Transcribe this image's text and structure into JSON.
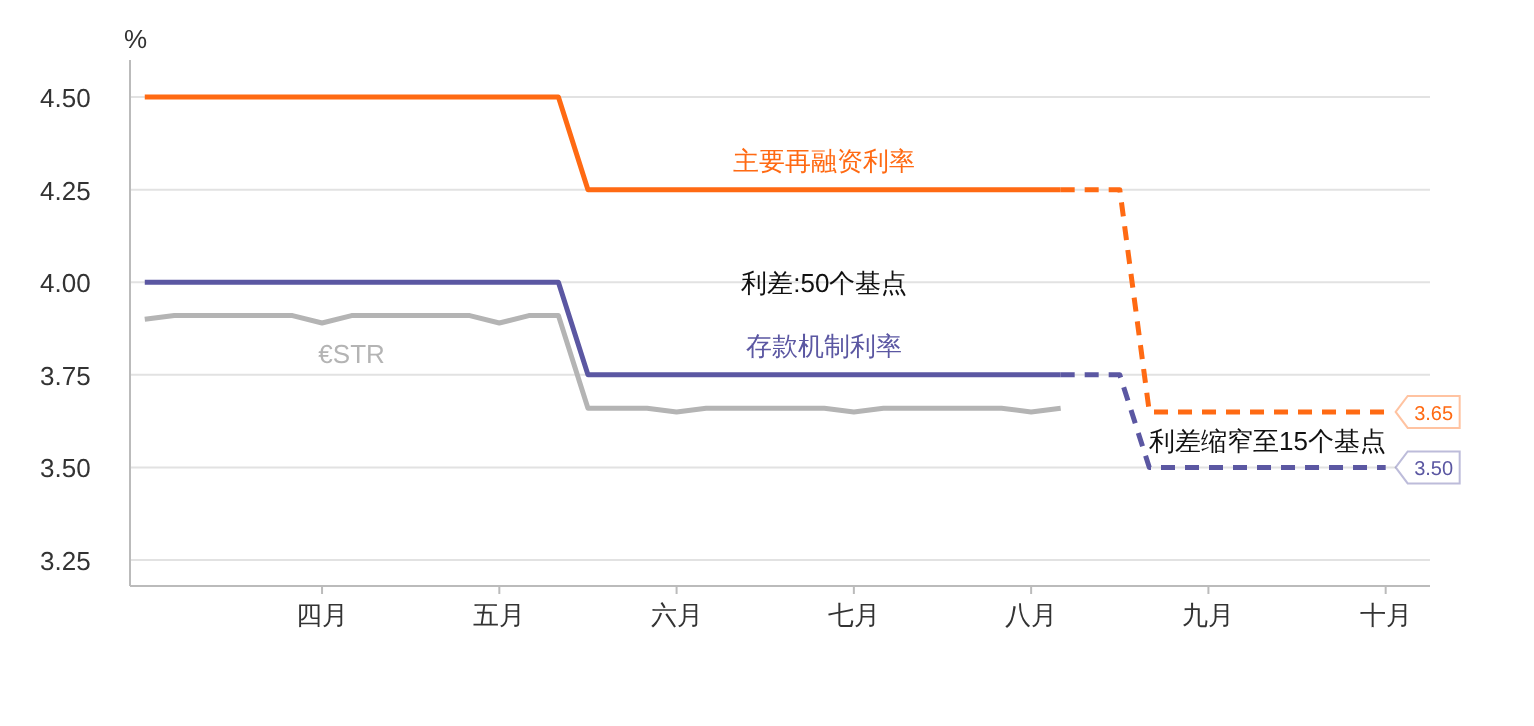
{
  "chart_data": {
    "type": "line",
    "ylabel": "%",
    "ylim": [
      3.18,
      4.6
    ],
    "categories": [
      null,
      null,
      null,
      null,
      null,
      null,
      "四月",
      null,
      null,
      null,
      null,
      null,
      "五月",
      null,
      null,
      null,
      null,
      null,
      "六月",
      null,
      null,
      null,
      null,
      null,
      "七月",
      null,
      null,
      null,
      null,
      null,
      "八月",
      null,
      null,
      null,
      null,
      null,
      "九月",
      null,
      null,
      null,
      null,
      null,
      "十月",
      null
    ],
    "yticks": [
      {
        "value": 3.25,
        "label": "3.25"
      },
      {
        "value": 3.5,
        "label": "3.50"
      },
      {
        "value": 3.75,
        "label": "3.75"
      },
      {
        "value": 4,
        "label": "4.00"
      },
      {
        "value": 4.25,
        "label": "4.25"
      },
      {
        "value": 4.5,
        "label": "4.50"
      }
    ],
    "grid": "y",
    "marker": "none",
    "series": [
      {
        "name": "主要再融资利率",
        "color": "#ff6a13",
        "line_style": "solid",
        "values": [
          4.5,
          4.5,
          4.5,
          4.5,
          4.5,
          4.5,
          4.5,
          4.5,
          4.5,
          4.5,
          4.5,
          4.5,
          4.5,
          4.5,
          4.5,
          4.25,
          4.25,
          4.25,
          4.25,
          4.25,
          4.25,
          4.25,
          4.25,
          4.25,
          4.25,
          4.25,
          4.25,
          4.25,
          4.25,
          4.25,
          4.25,
          4.25,
          null,
          null,
          null,
          null,
          null,
          null,
          null,
          null,
          null,
          null,
          null,
          null
        ]
      },
      {
        "color": "#ff6a13",
        "line_style": "dashed",
        "values": [
          null,
          null,
          null,
          null,
          null,
          null,
          null,
          null,
          null,
          null,
          null,
          null,
          null,
          null,
          null,
          null,
          null,
          null,
          null,
          null,
          null,
          null,
          null,
          null,
          null,
          null,
          null,
          null,
          null,
          null,
          null,
          4.25,
          4.25,
          4.25,
          3.65,
          3.65,
          3.65,
          3.65,
          3.65,
          3.65,
          3.65,
          3.65,
          3.65,
          null
        ],
        "value_labels": [
          null,
          null,
          null,
          null,
          null,
          null,
          null,
          null,
          null,
          null,
          null,
          null,
          null,
          null,
          null,
          null,
          null,
          null,
          null,
          null,
          null,
          null,
          null,
          null,
          null,
          null,
          null,
          null,
          null,
          null,
          null,
          null,
          null,
          null,
          null,
          null,
          null,
          null,
          null,
          null,
          null,
          null,
          "3.65",
          null
        ]
      },
      {
        "name": "存款机制利率",
        "color": "#5b57a2",
        "line_style": "solid",
        "values": [
          4.0,
          4.0,
          4.0,
          4.0,
          4.0,
          4.0,
          4.0,
          4.0,
          4.0,
          4.0,
          4.0,
          4.0,
          4.0,
          4.0,
          4.0,
          3.75,
          3.75,
          3.75,
          3.75,
          3.75,
          3.75,
          3.75,
          3.75,
          3.75,
          3.75,
          3.75,
          3.75,
          3.75,
          3.75,
          3.75,
          3.75,
          3.75,
          null,
          null,
          null,
          null,
          null,
          null,
          null,
          null,
          null,
          null,
          null,
          null
        ]
      },
      {
        "color": "#5b57a2",
        "line_style": "dashed",
        "values": [
          null,
          null,
          null,
          null,
          null,
          null,
          null,
          null,
          null,
          null,
          null,
          null,
          null,
          null,
          null,
          null,
          null,
          null,
          null,
          null,
          null,
          null,
          null,
          null,
          null,
          null,
          null,
          null,
          null,
          null,
          null,
          3.75,
          3.75,
          3.75,
          3.5,
          3.5,
          3.5,
          3.5,
          3.5,
          3.5,
          3.5,
          3.5,
          3.5,
          null
        ],
        "value_labels": [
          null,
          null,
          null,
          null,
          null,
          null,
          null,
          null,
          null,
          null,
          null,
          null,
          null,
          null,
          null,
          null,
          null,
          null,
          null,
          null,
          null,
          null,
          null,
          null,
          null,
          null,
          null,
          null,
          null,
          null,
          null,
          null,
          null,
          null,
          null,
          null,
          null,
          null,
          null,
          null,
          null,
          null,
          "3.50",
          null
        ]
      },
      {
        "name": "€STR",
        "color": "#b4b4b4",
        "line_style": "solid",
        "values": [
          3.9,
          3.91,
          3.91,
          3.91,
          3.91,
          3.91,
          3.89,
          3.91,
          3.91,
          3.91,
          3.91,
          3.91,
          3.89,
          3.91,
          3.91,
          3.66,
          3.66,
          3.66,
          3.65,
          3.66,
          3.66,
          3.66,
          3.66,
          3.66,
          3.65,
          3.66,
          3.66,
          3.66,
          3.66,
          3.66,
          3.65,
          3.66,
          null,
          null,
          null,
          null,
          null,
          null,
          null,
          null,
          null,
          null,
          null,
          null
        ]
      }
    ],
    "annotations": [
      "利差:50个基点",
      "利差缩窄至15个基点"
    ]
  }
}
